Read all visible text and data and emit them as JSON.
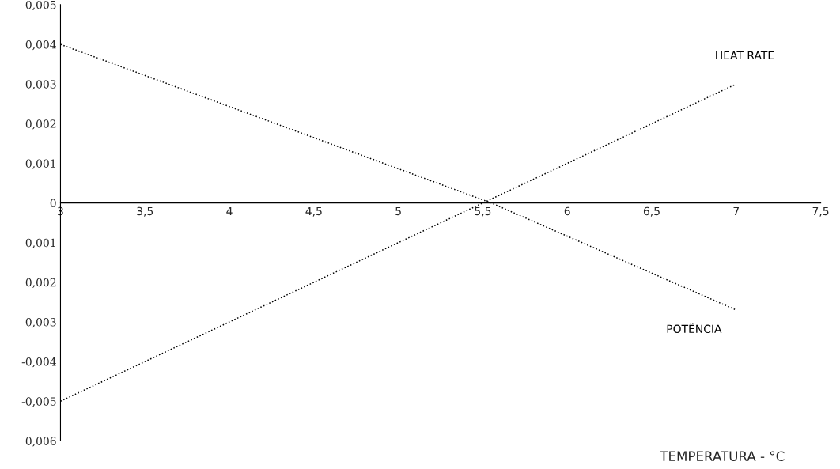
{
  "chart_data": {
    "type": "line",
    "xlabel": "TEMPERATURA - °C",
    "series": [
      {
        "name": "HEAT RATE",
        "color": "#000000",
        "x": [
          3,
          5.5,
          7
        ],
        "values": [
          -0.005,
          0,
          0.003
        ]
      },
      {
        "name": "POTÊNCIA",
        "color": "#000000",
        "x": [
          3,
          5.55,
          7
        ],
        "values": [
          0.004,
          0,
          -0.0027
        ]
      }
    ],
    "line_style": "dotted",
    "xlim": [
      3,
      7.5
    ],
    "xticks": [
      3,
      {
        "value": 3.5,
        "label": "3,5"
      },
      4,
      {
        "value": 4.5,
        "label": "4,5"
      },
      5,
      {
        "value": 5.5,
        "label": "5,5"
      },
      6,
      {
        "value": 6.5,
        "label": "6,5"
      },
      7,
      {
        "value": 7.5,
        "label": "7,5"
      }
    ],
    "ylim": [
      -0.006,
      0.005
    ],
    "yticks": [
      {
        "value": 0.005,
        "label": "0,005"
      },
      {
        "value": 0.004,
        "label": "0,004"
      },
      {
        "value": 0.003,
        "label": "0,003"
      },
      {
        "value": 0.002,
        "label": "0,002"
      },
      {
        "value": 0.001,
        "label": "0,001"
      },
      0,
      {
        "value": -0.001,
        "label": "0,001"
      },
      {
        "value": -0.002,
        "label": "0,002"
      },
      {
        "value": -0.003,
        "label": "0,003"
      },
      {
        "value": -0.004,
        "label": "-0,004"
      },
      {
        "value": -0.005,
        "label": "-0,005"
      },
      {
        "value": -0.006,
        "label": "0,006"
      }
    ],
    "legend": false
  }
}
